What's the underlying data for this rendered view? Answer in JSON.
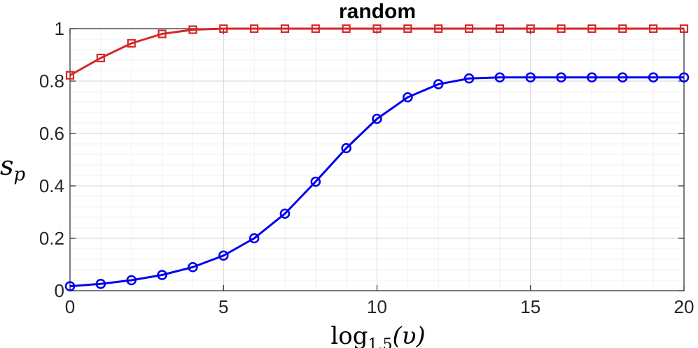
{
  "chart_data": {
    "type": "line",
    "title": "random",
    "xlabel_main": "log",
    "xlabel_sub": "1.5",
    "xlabel_arg": "(υ)",
    "ylabel_main": "s",
    "ylabel_sub": "p",
    "xlim": [
      0,
      20
    ],
    "ylim": [
      0,
      1
    ],
    "x_ticks": [
      0,
      5,
      10,
      15,
      20
    ],
    "y_ticks": [
      0,
      0.2,
      0.4,
      0.6,
      0.8,
      1
    ],
    "grid": true,
    "minor_grid": true,
    "x": [
      0,
      1,
      2,
      3,
      4,
      5,
      6,
      7,
      8,
      9,
      10,
      11,
      12,
      13,
      14,
      15,
      16,
      17,
      18,
      19,
      20
    ],
    "series": [
      {
        "marker": "square",
        "color": "#d62728",
        "values": [
          0.822,
          0.888,
          0.944,
          0.98,
          0.996,
          1,
          1,
          1,
          1,
          1,
          1,
          1,
          1,
          1,
          1,
          1,
          1,
          1,
          1,
          1,
          1
        ]
      },
      {
        "marker": "circle",
        "color": "#0000ee",
        "values": [
          0.017,
          0.026,
          0.04,
          0.06,
          0.09,
          0.134,
          0.2,
          0.294,
          0.416,
          0.544,
          0.656,
          0.738,
          0.788,
          0.81,
          0.814,
          0.814,
          0.814,
          0.814,
          0.814,
          0.814,
          0.814
        ]
      }
    ]
  }
}
